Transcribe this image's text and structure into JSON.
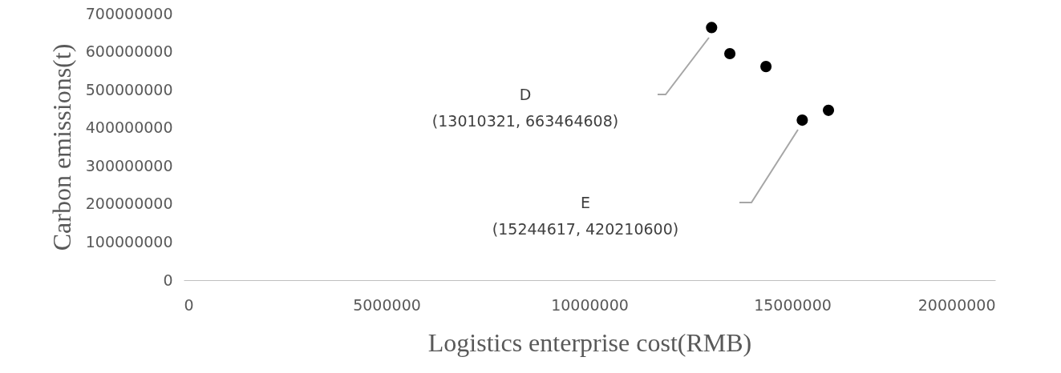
{
  "chart_data": {
    "type": "scatter",
    "xlabel": "Logistics enterprise cost(RMB)",
    "ylabel": "Carbon emissions(t)",
    "x": [
      13010321,
      13460000,
      14350000,
      15244617,
      15890000
    ],
    "series": [
      {
        "color": "#000000",
        "values": [
          663464608,
          595000000,
          561000000,
          420210600,
          446000000
        ]
      }
    ],
    "xlim": [
      0,
      20000000
    ],
    "xticks": [
      0,
      5000000,
      10000000,
      15000000,
      20000000
    ],
    "ylim": [
      0,
      700000000
    ],
    "yticks": [
      0,
      100000000,
      200000000,
      300000000,
      400000000,
      500000000,
      600000000,
      700000000
    ],
    "annotations": [
      "D\n(13010321, 663464608)",
      "E\n(15244617, 420210600)"
    ],
    "grid": false,
    "marker": "circle"
  }
}
